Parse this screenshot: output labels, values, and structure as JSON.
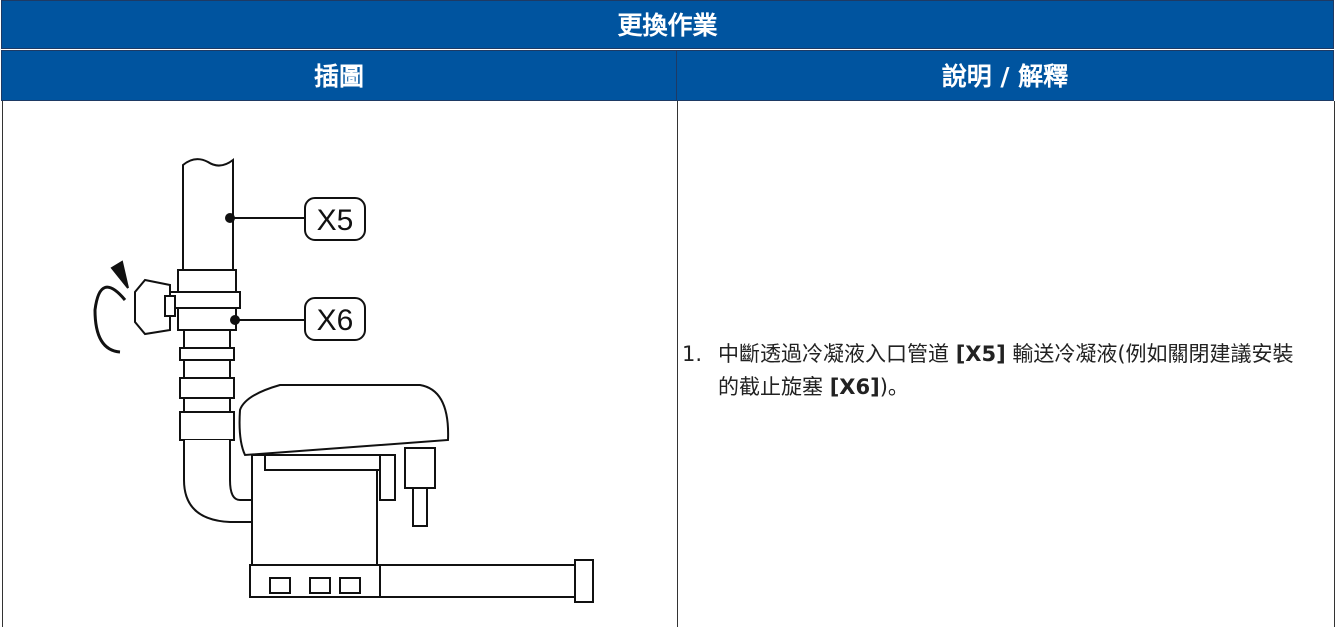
{
  "table": {
    "title": "更換作業",
    "headers": [
      "插圖",
      "說明 / 解釋"
    ],
    "figure": {
      "labels": [
        "X5",
        "X6"
      ]
    },
    "steps": [
      {
        "number": "1.",
        "parts": [
          "中斷透過冷凝液入口管道 ",
          "[X5]",
          " 輸送冷凝液(例如關閉建議安裝的截止旋塞 ",
          "[X6]",
          ")。"
        ]
      }
    ]
  }
}
